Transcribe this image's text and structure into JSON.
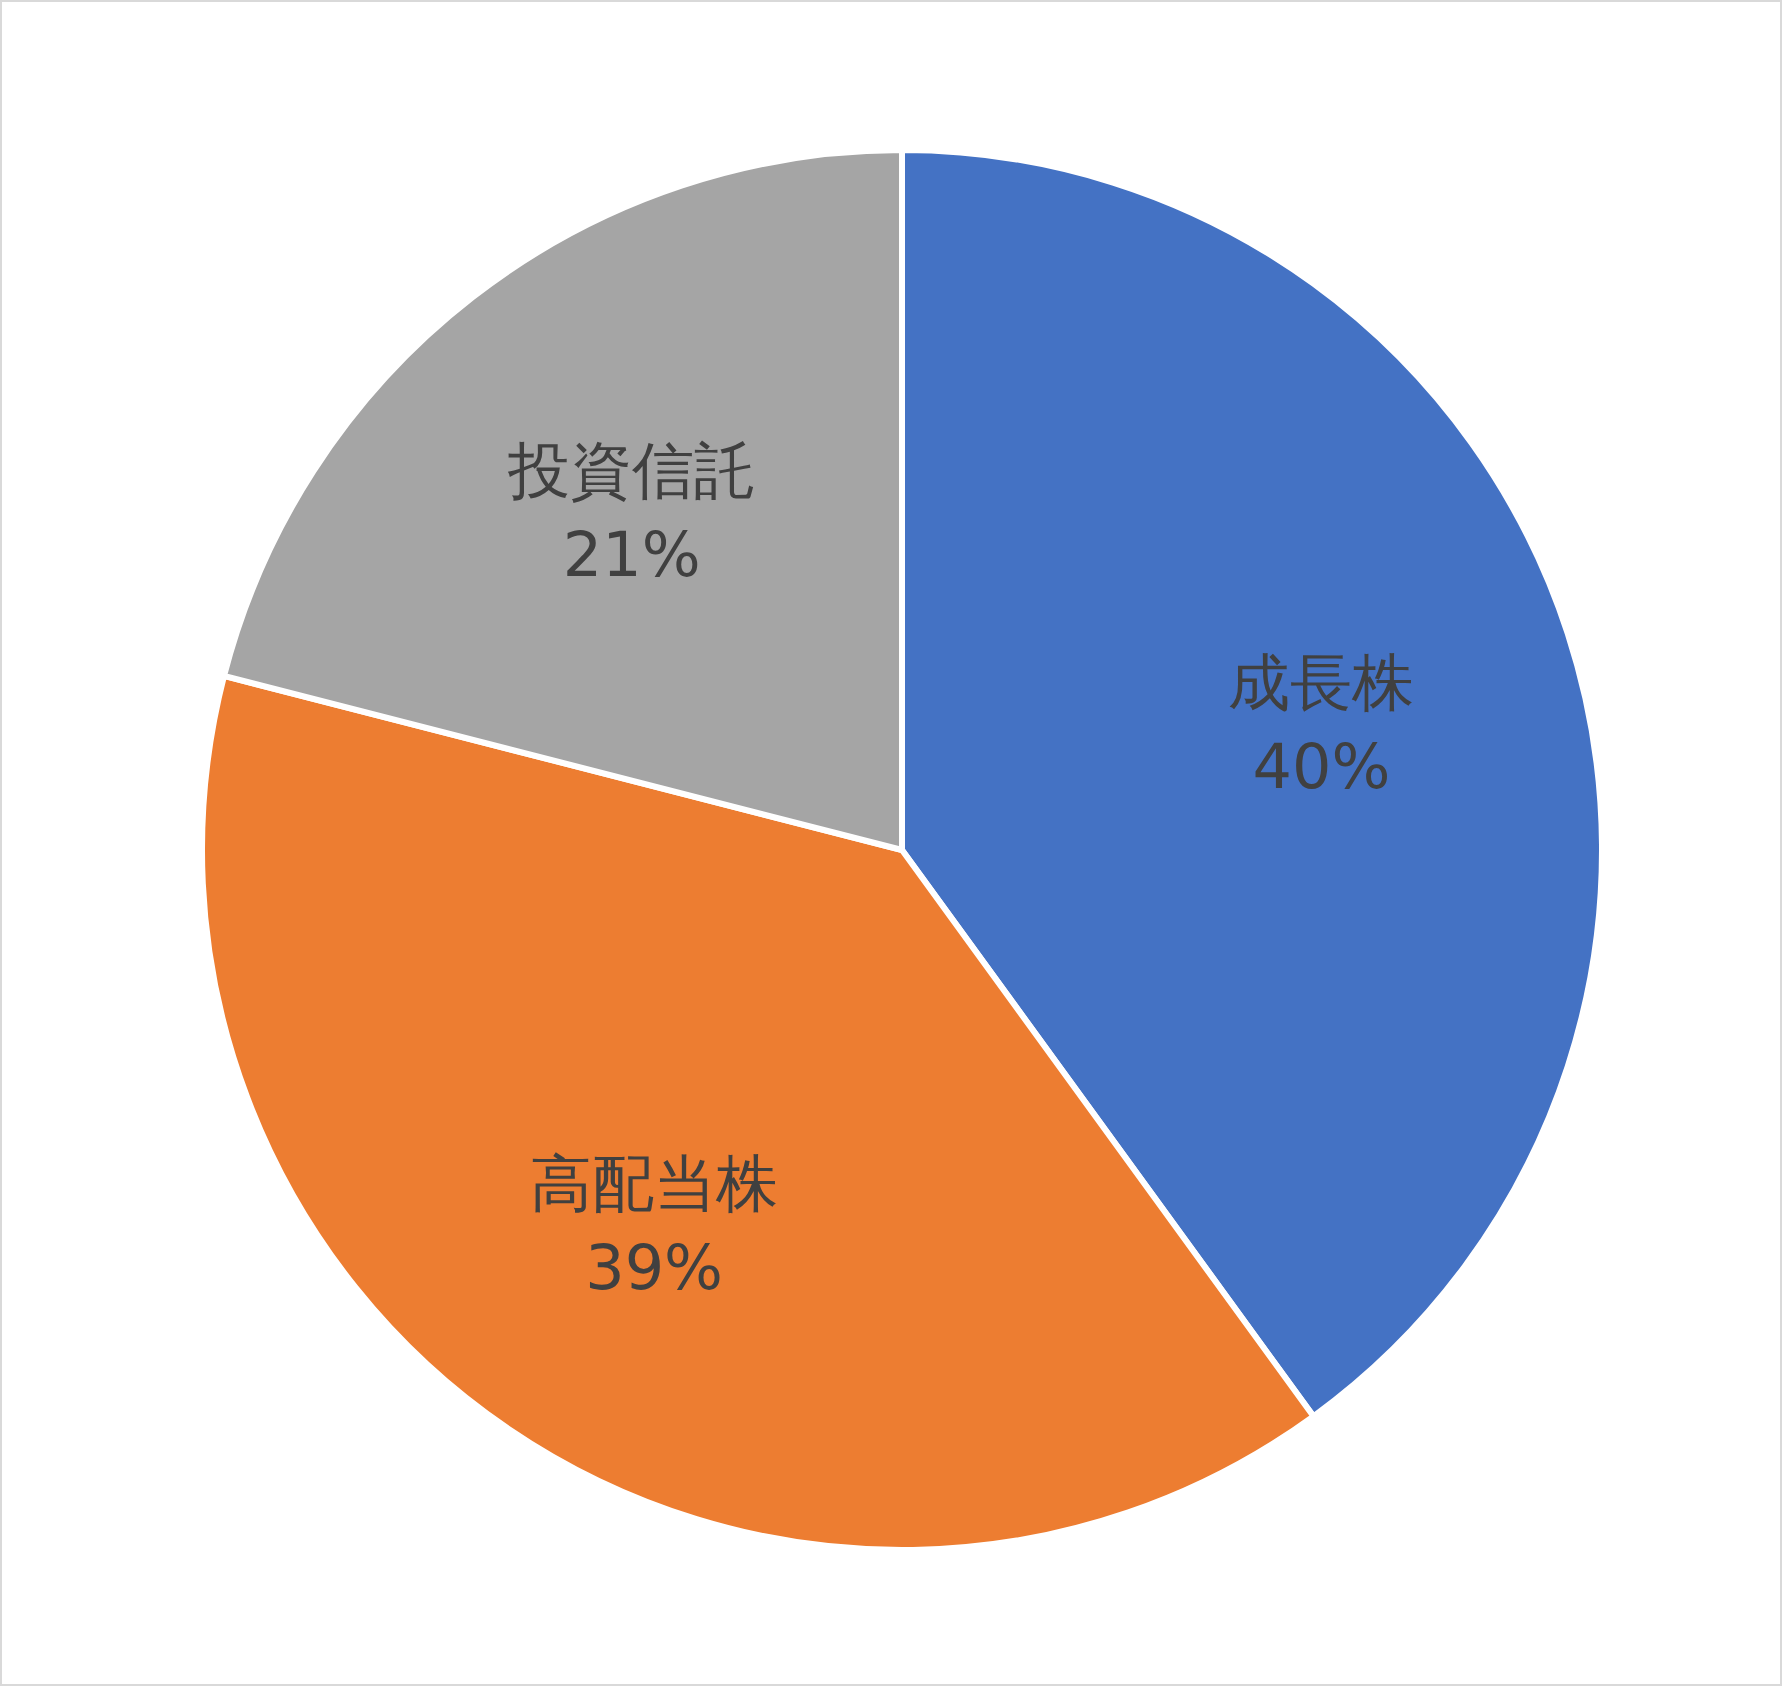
{
  "chart_data": {
    "type": "pie",
    "categories": [
      "成長株",
      "高配当株",
      "投資信託"
    ],
    "values": [
      40,
      39,
      21
    ],
    "colors": [
      "#4472c4",
      "#ed7d31",
      "#a5a5a5"
    ],
    "value_labels": [
      "40%",
      "39%",
      "21%"
    ]
  }
}
